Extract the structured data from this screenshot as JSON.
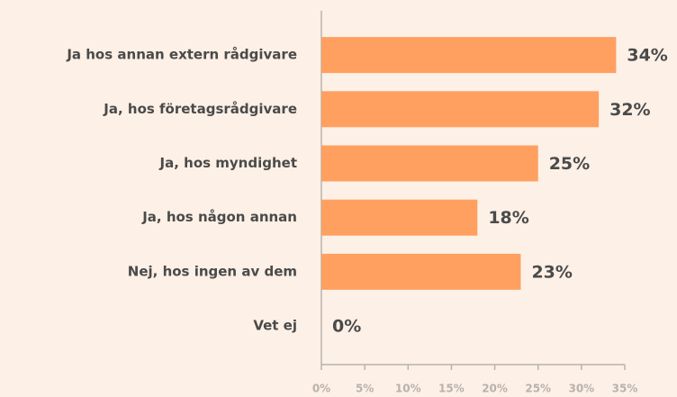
{
  "chart_data": {
    "type": "bar",
    "orientation": "horizontal",
    "categories": [
      "Ja hos annan extern rådgivare",
      "Ja, hos företagsrådgivare",
      "Ja, hos myndighet",
      "Ja, hos någon annan",
      "Nej, hos ingen av dem",
      "Vet ej"
    ],
    "values": [
      34,
      32,
      25,
      18,
      23,
      0
    ],
    "value_labels": [
      "34%",
      "32%",
      "25%",
      "18%",
      "23%",
      "0%"
    ],
    "color": "#ffa060",
    "xlim": [
      0,
      35
    ],
    "xticks": [
      {
        "value": 0,
        "label": "0%"
      },
      {
        "value": 5,
        "label": "5%"
      },
      {
        "value": 10,
        "label": "10%"
      },
      {
        "value": 15,
        "label": "15%"
      },
      {
        "value": 20,
        "label": "20%"
      },
      {
        "value": 25,
        "label": "25%"
      },
      {
        "value": 30,
        "label": "30%"
      },
      {
        "value": 35,
        "label": "35%"
      }
    ]
  }
}
